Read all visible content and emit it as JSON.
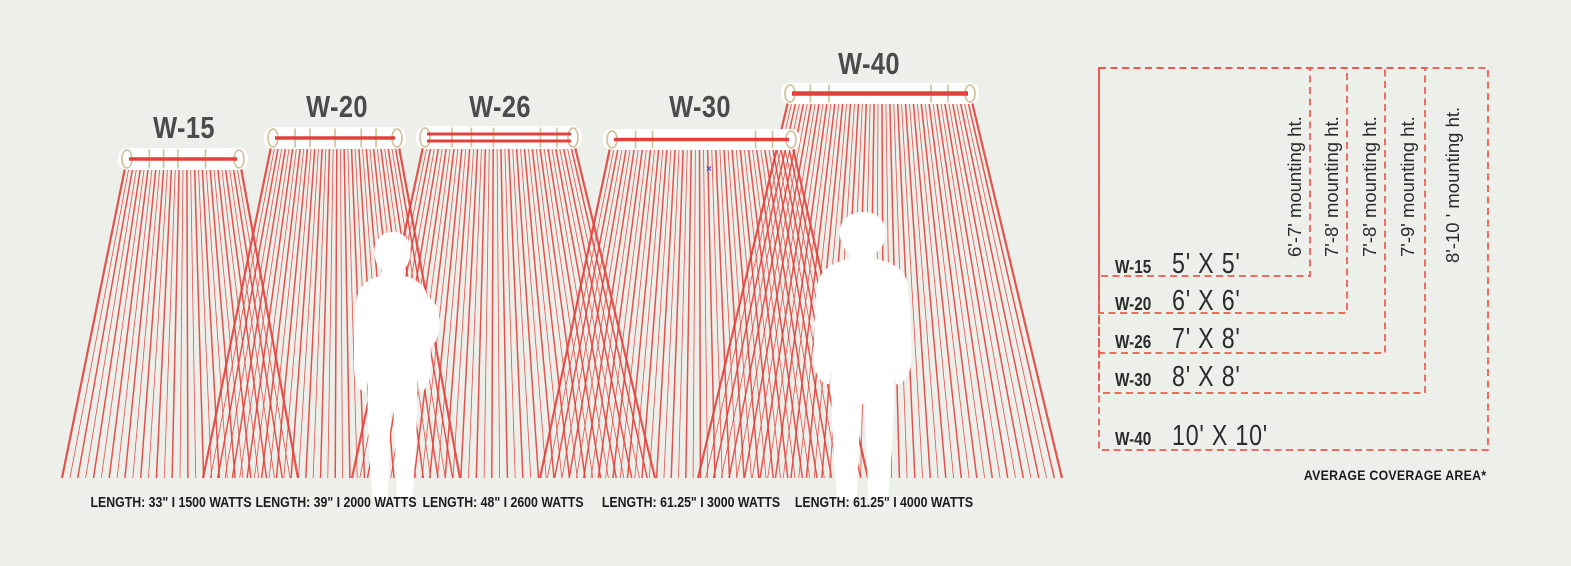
{
  "colors": {
    "background": "#edf0ea",
    "ray_red": "#e2423b",
    "dash_red": "#ee584c",
    "bar_tan": "#d2c39e",
    "bar_white": "#ffffff",
    "title_gray": "#4b4b4b",
    "text_dark": "#1c1c1c",
    "mark_blue": "#3b4bd8"
  },
  "heaters": [
    {
      "model": "W-15",
      "spec": "LENGTH: 33\" I 1500 WATTS",
      "coverage": "5' X 5'",
      "mounting": "6'-7' mounting ht."
    },
    {
      "model": "W-20",
      "spec": "LENGTH: 39\" I 2000 WATTS",
      "coverage": "6' X 6'",
      "mounting": "7'-8' mounting ht."
    },
    {
      "model": "W-26",
      "spec": "LENGTH: 48\" I 2600 WATTS",
      "coverage": "7' X 8'",
      "mounting": "7'-8' mounting ht."
    },
    {
      "model": "W-30",
      "spec": "LENGTH: 61.25\" I 3000 WATTS",
      "coverage": "8' X 8'",
      "mounting": "7'-9' mounting ht."
    },
    {
      "model": "W-40",
      "spec": "LENGTH: 61.25\" I 4000 WATTS",
      "coverage": "10' X 10'",
      "mounting": "8'-10 ' mounting ht."
    }
  ],
  "table": {
    "footnote": "AVERAGE COVERAGE AREA*"
  },
  "stray_mark": "×"
}
